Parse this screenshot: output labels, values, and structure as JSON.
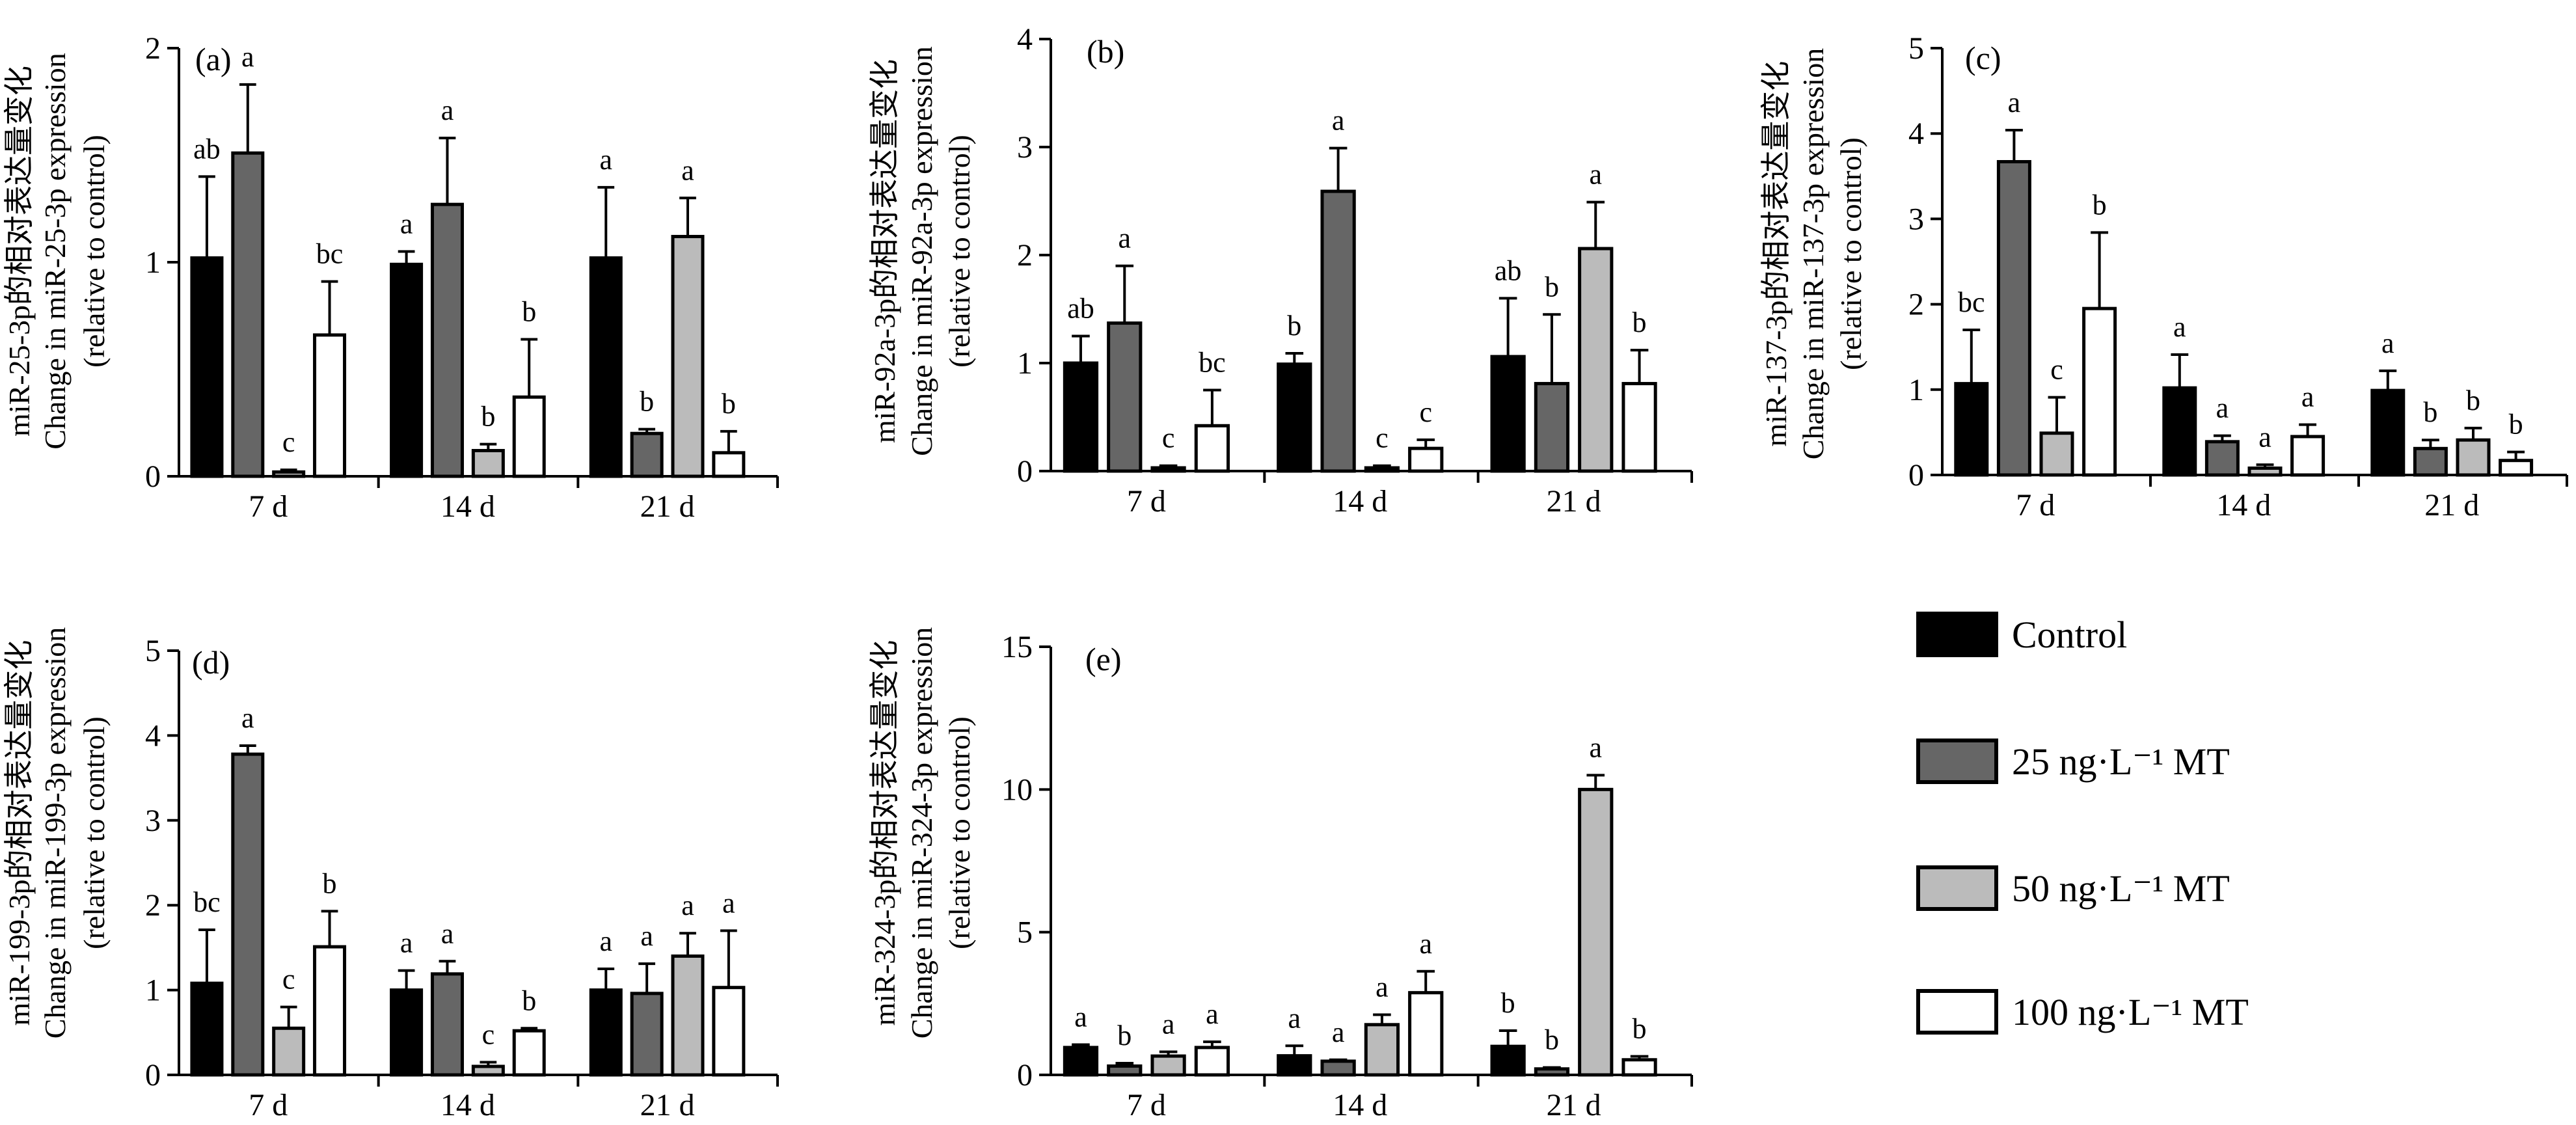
{
  "legend": {
    "items": [
      {
        "label": "Control",
        "color": "#000000"
      },
      {
        "label": "25 ng·L⁻¹ MT",
        "color": "#666666"
      },
      {
        "label": "50 ng·L⁻¹ MT",
        "color": "#bbbbbb"
      },
      {
        "label": "100 ng·L⁻¹ MT",
        "color": "#ffffff"
      }
    ]
  },
  "chart_data": [
    {
      "type": "bar",
      "panel": "(a)",
      "ylabel": [
        "miR-25-3p的相对表达量变化",
        "Change in miR-25-3p expression",
        "(relative to control)"
      ],
      "ylim": [
        0,
        2
      ],
      "yticks": [
        0,
        1,
        2
      ],
      "categories": [
        "7 d",
        "14 d",
        "21 d"
      ],
      "series": [
        {
          "name": "Control",
          "values": [
            1.02,
            0.99,
            1.02
          ],
          "errors": [
            0.38,
            0.06,
            0.33
          ],
          "sig": [
            "ab",
            "a",
            "a"
          ]
        },
        {
          "name": "25 ng·L⁻¹ MT",
          "values": [
            1.51,
            1.27,
            0.2
          ],
          "errors": [
            0.32,
            0.31,
            0.02
          ],
          "sig": [
            "a",
            "a",
            "b"
          ]
        },
        {
          "name": "50 ng·L⁻¹ MT",
          "values": [
            0.02,
            0.12,
            1.12
          ],
          "errors": [
            0.01,
            0.03,
            0.18
          ],
          "sig": [
            "c",
            "b",
            "a"
          ]
        },
        {
          "name": "100 ng·L⁻¹ MT",
          "values": [
            0.66,
            0.37,
            0.11
          ],
          "errors": [
            0.25,
            0.27,
            0.1
          ],
          "sig": [
            "bc",
            "b",
            "b"
          ]
        }
      ]
    },
    {
      "type": "bar",
      "panel": "(b)",
      "ylabel": [
        "miR-92a-3p的相对表达量变化",
        "Change in miR-92a-3p expression",
        "(relative to control)"
      ],
      "ylim": [
        0,
        4
      ],
      "yticks": [
        0,
        1,
        2,
        3,
        4
      ],
      "categories": [
        "7 d",
        "14 d",
        "21 d"
      ],
      "series": [
        {
          "name": "Control",
          "values": [
            1.0,
            0.99,
            1.06
          ],
          "errors": [
            0.25,
            0.1,
            0.54
          ],
          "sig": [
            "ab",
            "b",
            "ab"
          ]
        },
        {
          "name": "25 ng·L⁻¹ MT",
          "values": [
            1.37,
            2.59,
            0.81
          ],
          "errors": [
            0.53,
            0.4,
            0.64
          ],
          "sig": [
            "a",
            "a",
            "b"
          ]
        },
        {
          "name": "50 ng·L⁻¹ MT",
          "values": [
            0.03,
            0.03,
            2.06
          ],
          "errors": [
            0.02,
            0.02,
            0.43
          ],
          "sig": [
            "c",
            "c",
            "a"
          ]
        },
        {
          "name": "100 ng·L⁻¹ MT",
          "values": [
            0.42,
            0.21,
            0.81
          ],
          "errors": [
            0.33,
            0.08,
            0.31
          ],
          "sig": [
            "bc",
            "c",
            "b"
          ]
        }
      ]
    },
    {
      "type": "bar",
      "panel": "(c)",
      "ylabel": [
        "miR-137-3p的相对表达量变化",
        "Change in miR-137-3p expression",
        "(relative to control)"
      ],
      "ylim": [
        0,
        5
      ],
      "yticks": [
        0,
        1,
        2,
        3,
        4,
        5
      ],
      "categories": [
        "7 d",
        "14 d",
        "21 d"
      ],
      "series": [
        {
          "name": "Control",
          "values": [
            1.07,
            1.02,
            0.99
          ],
          "errors": [
            0.63,
            0.39,
            0.23
          ],
          "sig": [
            "bc",
            "a",
            "a"
          ]
        },
        {
          "name": "25 ng·L⁻¹ MT",
          "values": [
            3.67,
            0.39,
            0.31
          ],
          "errors": [
            0.37,
            0.07,
            0.1
          ],
          "sig": [
            "a",
            "a",
            "b"
          ]
        },
        {
          "name": "50 ng·L⁻¹ MT",
          "values": [
            0.49,
            0.08,
            0.41
          ],
          "errors": [
            0.42,
            0.04,
            0.14
          ],
          "sig": [
            "c",
            "a",
            "b"
          ]
        },
        {
          "name": "100 ng·L⁻¹ MT",
          "values": [
            1.95,
            0.45,
            0.17
          ],
          "errors": [
            0.89,
            0.14,
            0.1
          ],
          "sig": [
            "b",
            "a",
            "b"
          ]
        }
      ]
    },
    {
      "type": "bar",
      "panel": "(d)",
      "ylabel": [
        "miR-199-3p的相对表达量变化",
        "Change in miR-199-3p expression",
        "(relative to control)"
      ],
      "ylim": [
        0,
        5
      ],
      "yticks": [
        0,
        1,
        2,
        3,
        4,
        5
      ],
      "categories": [
        "7 d",
        "14 d",
        "21 d"
      ],
      "series": [
        {
          "name": "Control",
          "values": [
            1.08,
            1.0,
            1.0
          ],
          "errors": [
            0.63,
            0.23,
            0.25
          ],
          "sig": [
            "bc",
            "a",
            "a"
          ]
        },
        {
          "name": "25 ng·L⁻¹ MT",
          "values": [
            3.78,
            1.19,
            0.96
          ],
          "errors": [
            0.1,
            0.15,
            0.35
          ],
          "sig": [
            "a",
            "a",
            "a"
          ]
        },
        {
          "name": "50 ng·L⁻¹ MT",
          "values": [
            0.55,
            0.1,
            1.4
          ],
          "errors": [
            0.25,
            0.05,
            0.27
          ],
          "sig": [
            "c",
            "c",
            "a"
          ]
        },
        {
          "name": "100 ng·L⁻¹ MT",
          "values": [
            1.51,
            0.52,
            1.03
          ],
          "errors": [
            0.42,
            0.03,
            0.67
          ],
          "sig": [
            "b",
            "b",
            "a"
          ]
        }
      ]
    },
    {
      "type": "bar",
      "panel": "(e)",
      "ylabel": [
        "miR-324-3p的相对表达量变化",
        "Change in miR-324-3p expression",
        "(relative to control)"
      ],
      "ylim": [
        0,
        15
      ],
      "yticks": [
        0,
        5,
        10,
        15
      ],
      "categories": [
        "7 d",
        "14 d",
        "21 d"
      ],
      "series": [
        {
          "name": "Control",
          "values": [
            0.96,
            0.67,
            1.0
          ],
          "errors": [
            0.1,
            0.35,
            0.55
          ],
          "sig": [
            "a",
            "a",
            "b"
          ]
        },
        {
          "name": "25 ng·L⁻¹ MT",
          "values": [
            0.31,
            0.48,
            0.21
          ],
          "errors": [
            0.1,
            0.05,
            0.05
          ],
          "sig": [
            "b",
            "a",
            "b"
          ]
        },
        {
          "name": "50 ng·L⁻¹ MT",
          "values": [
            0.66,
            1.76,
            10.0
          ],
          "errors": [
            0.15,
            0.35,
            0.5
          ],
          "sig": [
            "a",
            "a",
            "a"
          ]
        },
        {
          "name": "100 ng·L⁻¹ MT",
          "values": [
            0.96,
            2.88,
            0.53
          ],
          "errors": [
            0.2,
            0.75,
            0.12
          ],
          "sig": [
            "a",
            "a",
            "b"
          ]
        }
      ]
    }
  ]
}
